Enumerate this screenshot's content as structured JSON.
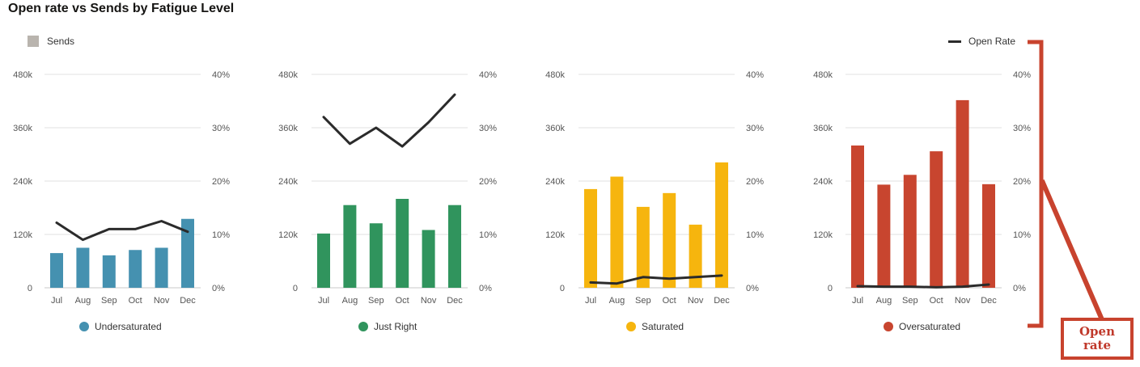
{
  "title": "Open rate vs Sends by Fatigue Level",
  "legend": {
    "bars": "Sends",
    "line": "Open Rate"
  },
  "annotation": {
    "label_line1": "Open",
    "label_line2": "rate",
    "color": "#c8432e"
  },
  "chart_data": {
    "type": "bar",
    "categories": [
      "Jul",
      "Aug",
      "Sep",
      "Oct",
      "Nov",
      "Dec"
    ],
    "y_left": {
      "ylim": [
        0,
        480000
      ],
      "ticks": [
        "0",
        "120k",
        "240k",
        "360k",
        "480k"
      ]
    },
    "y_right": {
      "ylim": [
        0,
        40
      ],
      "ticks": [
        "0%",
        "10%",
        "20%",
        "30%",
        "40%"
      ]
    },
    "panels": [
      {
        "name": "Undersaturated",
        "color": "#4591b0",
        "sends": [
          78000,
          90000,
          73000,
          85000,
          90000,
          155000
        ],
        "open_rate": [
          12.2,
          9.0,
          11.0,
          11.0,
          12.5,
          10.5
        ]
      },
      {
        "name": "Just Right",
        "color": "#30945d",
        "sends": [
          122000,
          186000,
          145000,
          200000,
          130000,
          186000
        ],
        "open_rate": [
          32.0,
          27.0,
          30.0,
          26.5,
          31.0,
          36.2
        ]
      },
      {
        "name": "Saturated",
        "color": "#f6b50e",
        "sends": [
          222000,
          250000,
          182000,
          213000,
          142000,
          282000
        ],
        "open_rate": [
          1.0,
          0.8,
          2.0,
          1.7,
          2.0,
          2.3
        ]
      },
      {
        "name": "Oversaturated",
        "color": "#c8452f",
        "sends": [
          320000,
          232000,
          254000,
          307000,
          422000,
          233000
        ],
        "open_rate": [
          0.3,
          0.2,
          0.2,
          0.1,
          0.2,
          0.6
        ]
      }
    ]
  }
}
